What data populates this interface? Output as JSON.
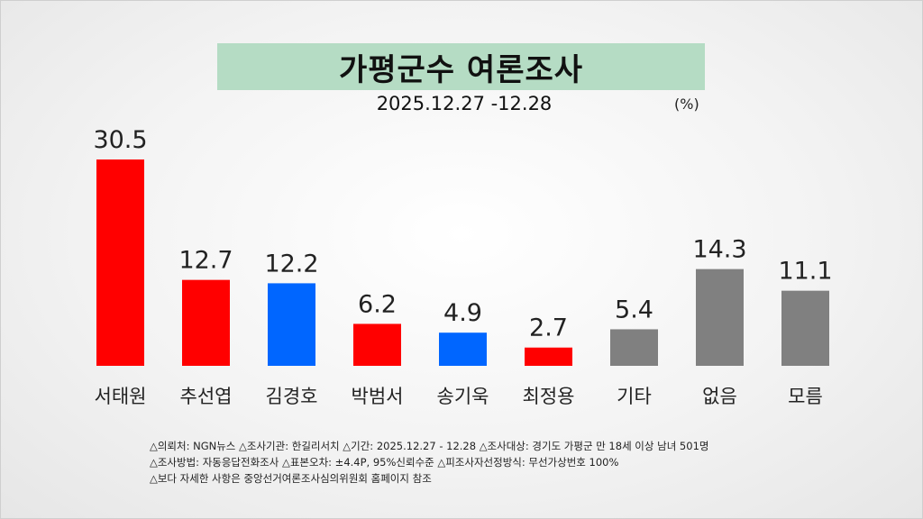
{
  "title": "가평군수 여론조사",
  "date_range": "2025.12.27 -12.28",
  "unit": "(%)",
  "chart_data": {
    "type": "bar",
    "title": "가평군수 여론조사",
    "subtitle": "2025.12.27 -12.28",
    "unit": "(%)",
    "categories": [
      "서태원",
      "추선엽",
      "김경호",
      "박범서",
      "송기욱",
      "최정용",
      "기타",
      "없음",
      "모름"
    ],
    "values": [
      30.5,
      12.7,
      12.2,
      6.2,
      4.9,
      2.7,
      5.4,
      14.3,
      11.1
    ],
    "value_labels": [
      "30.5",
      "12.7",
      "12.2",
      "6.2",
      "4.9",
      "2.7",
      "5.4",
      "14.3",
      "11.1"
    ],
    "colors": [
      "#ff0000",
      "#ff0000",
      "#0066ff",
      "#ff0000",
      "#0066ff",
      "#ff0000",
      "#808080",
      "#808080",
      "#808080"
    ],
    "ylim": [
      0,
      30.5
    ],
    "grid": false,
    "legend": "none"
  },
  "footnotes": [
    "△의뢰처: NGN뉴스  △조사기관: 한길리서치  △기간: 2025.12.27 - 12.28 △조사대상: 경기도 가평군 만 18세 이상 남녀 501명",
    "△조사방법: 자동응답전화조사   △표본오차:  ±4.4P, 95%신뢰수준 △피조사자선정방식: 무선가상번호 100%",
    "△보다 자세한 사항은 중앙선거여론조사심의위원회 홈페이지 참조"
  ]
}
